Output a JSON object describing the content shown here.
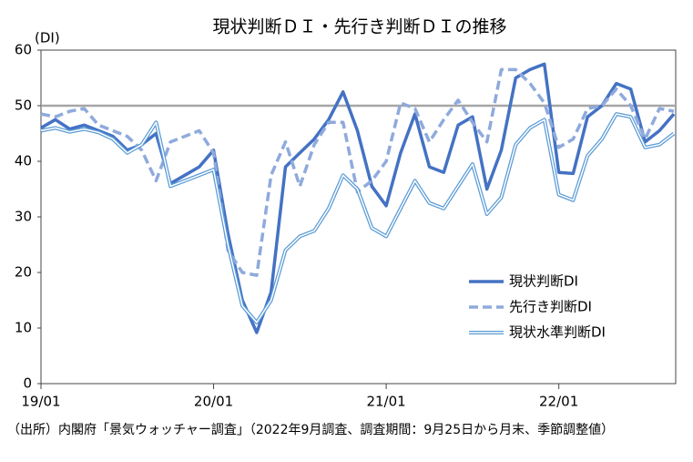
{
  "chart_data": {
    "type": "line",
    "title": "現状判断ＤＩ・先行き判断ＤＩの推移",
    "y_axis_label": "(DI)",
    "note": "（出所）内閣府「景気ウォッチャー調査」（2022年9月調査、調査期間：9月25日から月末、季節調整値）",
    "categories": [
      "19/01",
      null,
      null,
      null,
      null,
      null,
      null,
      null,
      null,
      null,
      null,
      null,
      "20/01",
      null,
      null,
      null,
      null,
      null,
      null,
      null,
      null,
      null,
      null,
      null,
      "21/01",
      null,
      null,
      null,
      null,
      null,
      null,
      null,
      null,
      null,
      null,
      null,
      "22/01",
      null,
      null,
      null,
      null,
      null,
      null,
      null,
      null
    ],
    "series": [
      {
        "name": "現状判断DI",
        "color": "#4472c4",
        "style": "solid",
        "values": [
          46,
          47.5,
          45.8,
          46.5,
          45.5,
          44.5,
          42,
          43,
          45,
          36,
          37.5,
          39,
          42,
          27,
          15,
          9.2,
          16.5,
          39,
          41.5,
          44,
          47.5,
          52.5,
          45.5,
          35.5,
          32,
          41.5,
          48.5,
          39,
          38,
          46.5,
          48,
          35,
          42,
          55,
          56.5,
          57.5,
          38,
          37.8,
          48,
          50,
          54,
          53,
          43.5,
          45.5,
          48.5
        ]
      },
      {
        "name": "先行き判断DI",
        "color": "#8faadc",
        "style": "dashed",
        "values": [
          48.5,
          48,
          49,
          49.5,
          46.5,
          45.5,
          44.5,
          42,
          36.5,
          43.5,
          44.5,
          45.5,
          41.5,
          24,
          20,
          19.5,
          37.5,
          43.5,
          35.5,
          43,
          47,
          47,
          34.5,
          36.5,
          40,
          50.5,
          49.5,
          43.5,
          47.5,
          51,
          47,
          43.5,
          56.5,
          56.5,
          54,
          50.5,
          42.5,
          44,
          49.5,
          50,
          53,
          50,
          44,
          49.5,
          49
        ]
      },
      {
        "name": "現状水準判断DI",
        "color": "#5b9bd5",
        "style": "double",
        "values": [
          45.5,
          46,
          45.3,
          45.8,
          45.2,
          44,
          41.5,
          43,
          47,
          35.5,
          36.5,
          37.5,
          38.5,
          25,
          14,
          11,
          15,
          24,
          26.5,
          27.5,
          31.5,
          37.5,
          35,
          28,
          26.5,
          31.5,
          36.5,
          32.5,
          31.5,
          35.5,
          39.5,
          30.5,
          33.5,
          43,
          46,
          47.5,
          34,
          33,
          41,
          44,
          48.5,
          48,
          42.5,
          43,
          45
        ]
      }
    ],
    "reference_line": 50,
    "ylim": [
      0,
      60
    ],
    "yticks": [
      0,
      10,
      20,
      30,
      40,
      50,
      60
    ],
    "legend": "right"
  }
}
